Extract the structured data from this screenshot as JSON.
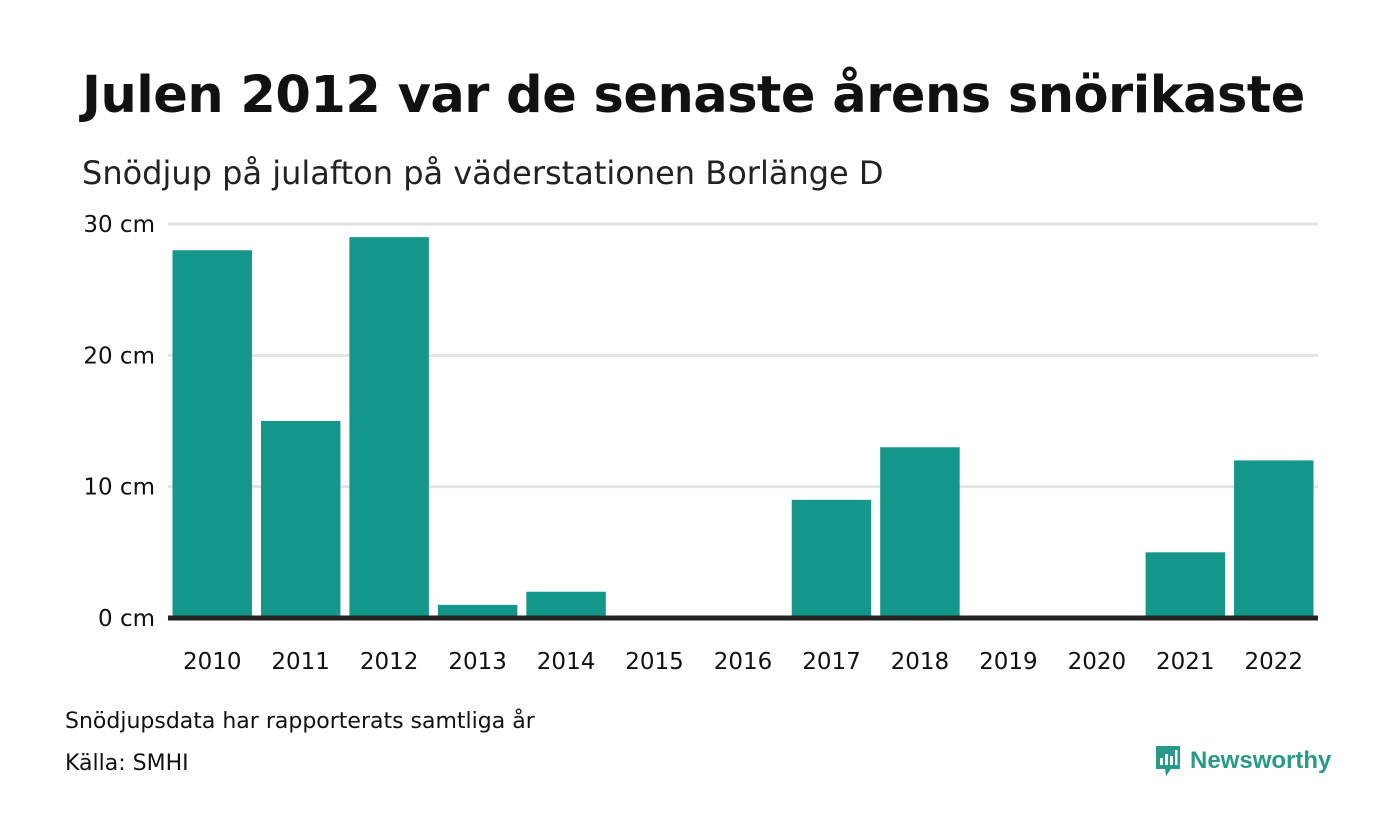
{
  "title": "Julen 2012 var de senaste årens snörikaste",
  "subtitle": "Snödjup på julafton på väderstationen Borlänge D",
  "footnote": "Snödjupsdata har rapporterats samtliga år",
  "source": "Källa: SMHI",
  "brand": {
    "name": "Newsworthy",
    "icon": "newsworthy-logo-icon",
    "color": "#2a9a88"
  },
  "colors": {
    "bar": "#14968a",
    "grid": "#e3e3e3",
    "baseline": "#222222"
  },
  "chart_data": {
    "type": "bar",
    "categories": [
      "2010",
      "2011",
      "2012",
      "2013",
      "2014",
      "2015",
      "2016",
      "2017",
      "2018",
      "2019",
      "2020",
      "2021",
      "2022"
    ],
    "values": [
      28,
      15,
      29,
      1,
      2,
      0,
      0,
      9,
      13,
      0,
      0,
      5,
      12
    ],
    "unit": "cm",
    "ylim": [
      0,
      30
    ],
    "yticks": [
      0,
      10,
      20,
      30
    ],
    "ytick_labels": [
      "0 cm",
      "10 cm",
      "20 cm",
      "30 cm"
    ],
    "grid": true,
    "legend": "none"
  }
}
